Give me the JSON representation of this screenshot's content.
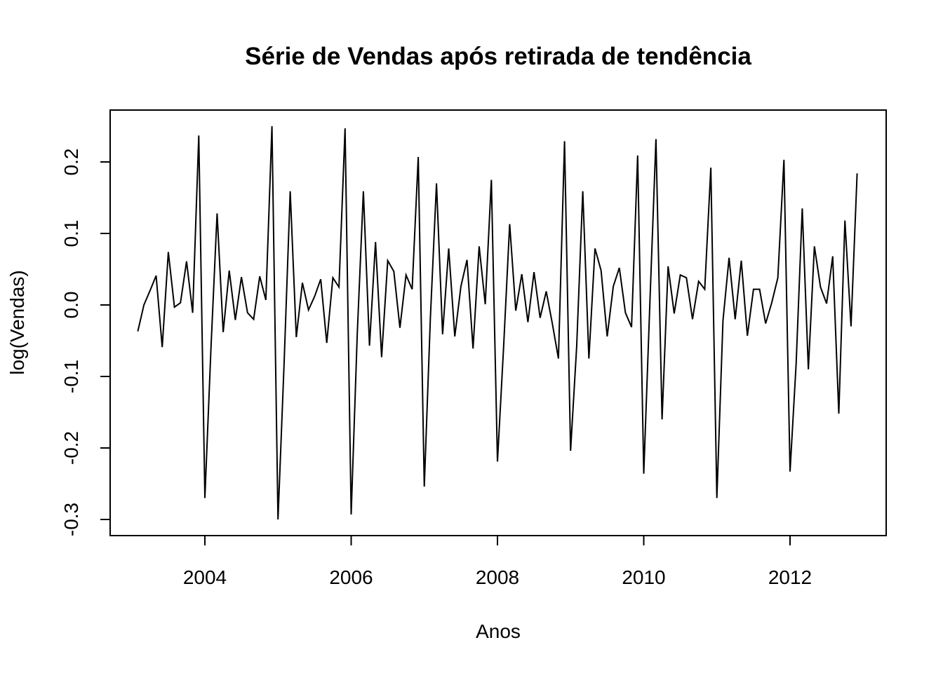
{
  "chart_data": {
    "type": "line",
    "title": "Série de Vendas após retirada de tendência",
    "xlabel": "Anos",
    "ylabel": "log(Vendas)",
    "xlim": [
      2003.0,
      2013.0
    ],
    "ylim": [
      -0.3,
      0.25
    ],
    "grid": false,
    "legend": "none",
    "x_ticks": [
      2004,
      2006,
      2008,
      2010,
      2012
    ],
    "x_tick_labels": [
      "2004",
      "2006",
      "2008",
      "2010",
      "2012"
    ],
    "y_ticks": [
      -0.3,
      -0.2,
      -0.1,
      0.0,
      0.1,
      0.2
    ],
    "y_tick_labels": [
      "-0.3",
      "-0.2",
      "-0.1",
      "0.0",
      "0.1",
      "0.2"
    ],
    "x_start": 2003.0833,
    "x_step": 0.0833333,
    "line_color": "#000000",
    "series": [
      {
        "values": [
          -0.037,
          0.0,
          0.02,
          0.041,
          -0.059,
          0.074,
          -0.003,
          0.003,
          0.061,
          -0.011,
          0.237,
          -0.27,
          -0.06,
          0.128,
          -0.038,
          0.048,
          -0.021,
          0.039,
          -0.011,
          -0.02,
          0.04,
          0.007,
          0.25,
          -0.3,
          -0.082,
          0.159,
          -0.045,
          0.031,
          -0.007,
          0.012,
          0.036,
          -0.053,
          0.038,
          0.025,
          0.247,
          -0.293,
          -0.04,
          0.159,
          -0.057,
          0.088,
          -0.073,
          0.062,
          0.047,
          -0.032,
          0.042,
          0.022,
          0.207,
          -0.254,
          -0.018,
          0.17,
          -0.041,
          0.079,
          -0.044,
          0.026,
          0.063,
          -0.061,
          0.082,
          0.001,
          0.175,
          -0.219,
          -0.06,
          0.113,
          -0.008,
          0.043,
          -0.024,
          0.046,
          -0.018,
          0.019,
          -0.026,
          -0.075,
          0.229,
          -0.204,
          -0.058,
          0.159,
          -0.075,
          0.079,
          0.048,
          -0.044,
          0.026,
          0.052,
          -0.011,
          -0.031,
          0.209,
          -0.236,
          0.002,
          0.232,
          -0.16,
          0.054,
          -0.012,
          0.042,
          0.038,
          -0.02,
          0.033,
          0.022,
          0.192,
          -0.27,
          -0.022,
          0.066,
          -0.02,
          0.062,
          -0.043,
          0.022,
          0.022,
          -0.026,
          0.003,
          0.038,
          0.203,
          -0.233,
          -0.082,
          0.135,
          -0.09,
          0.082,
          0.025,
          0.002,
          0.068,
          -0.152,
          0.118,
          -0.03,
          0.184
        ]
      }
    ]
  }
}
